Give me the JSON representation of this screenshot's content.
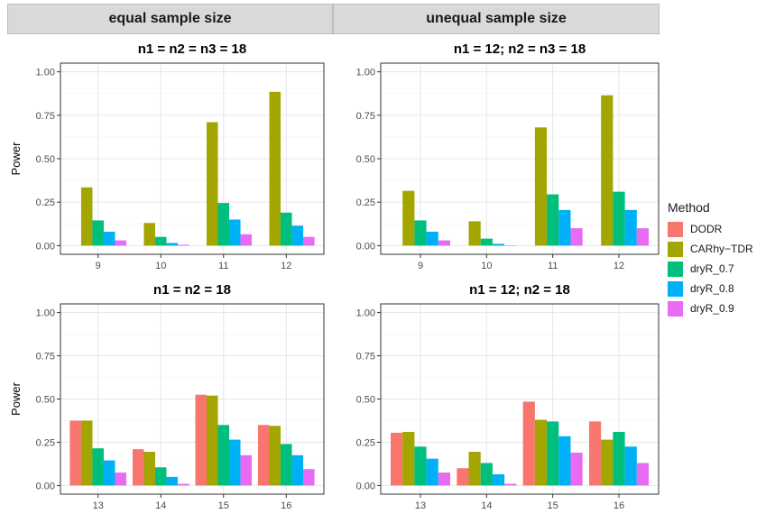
{
  "strips": [
    "equal sample size",
    "unequal sample size"
  ],
  "legend": {
    "title": "Method",
    "items": [
      {
        "label": "DODR",
        "color": "#F8766D"
      },
      {
        "label": "CARhy−TDR",
        "color": "#A3A500"
      },
      {
        "label": "dryR_0.7",
        "color": "#00BF7D"
      },
      {
        "label": "dryR_0.8",
        "color": "#00B0F6"
      },
      {
        "label": "dryR_0.9",
        "color": "#E76BF3"
      }
    ]
  },
  "chart_data": [
    {
      "type": "bar",
      "title": "n1 = n2 = n3 = 18",
      "strip": "equal sample size",
      "ylabel": "Power",
      "ylim": [
        0,
        1
      ],
      "yticks": [
        "0.00",
        "0.25",
        "0.50",
        "0.75",
        "1.00"
      ],
      "categories": [
        "9",
        "10",
        "11",
        "12"
      ],
      "series": [
        {
          "name": "DODR",
          "values": [
            0,
            0,
            0,
            0
          ]
        },
        {
          "name": "CARhy−TDR",
          "values": [
            0.335,
            0.13,
            0.71,
            0.885
          ]
        },
        {
          "name": "dryR_0.7",
          "values": [
            0.145,
            0.05,
            0.245,
            0.19
          ]
        },
        {
          "name": "dryR_0.8",
          "values": [
            0.08,
            0.015,
            0.15,
            0.115
          ]
        },
        {
          "name": "dryR_0.9",
          "values": [
            0.03,
            0.005,
            0.065,
            0.05
          ]
        }
      ]
    },
    {
      "type": "bar",
      "title": "n1 = 12; n2 = n3 = 18",
      "strip": "unequal sample size",
      "ylabel": "",
      "ylim": [
        0,
        1
      ],
      "yticks": [
        "0.00",
        "0.25",
        "0.50",
        "0.75",
        "1.00"
      ],
      "categories": [
        "9",
        "10",
        "11",
        "12"
      ],
      "series": [
        {
          "name": "DODR",
          "values": [
            0,
            0,
            0,
            0
          ]
        },
        {
          "name": "CARhy−TDR",
          "values": [
            0.315,
            0.14,
            0.68,
            0.865
          ]
        },
        {
          "name": "dryR_0.7",
          "values": [
            0.145,
            0.04,
            0.295,
            0.31
          ]
        },
        {
          "name": "dryR_0.8",
          "values": [
            0.08,
            0.01,
            0.205,
            0.205
          ]
        },
        {
          "name": "dryR_0.9",
          "values": [
            0.03,
            0.002,
            0.1,
            0.1
          ]
        }
      ]
    },
    {
      "type": "bar",
      "title": "n1 = n2 = 18",
      "strip": "equal sample size",
      "ylabel": "Power",
      "ylim": [
        0,
        1
      ],
      "yticks": [
        "0.00",
        "0.25",
        "0.50",
        "0.75",
        "1.00"
      ],
      "categories": [
        "13",
        "14",
        "15",
        "16"
      ],
      "series": [
        {
          "name": "DODR",
          "values": [
            0.375,
            0.21,
            0.525,
            0.35
          ]
        },
        {
          "name": "CARhy−TDR",
          "values": [
            0.375,
            0.195,
            0.52,
            0.345
          ]
        },
        {
          "name": "dryR_0.7",
          "values": [
            0.215,
            0.105,
            0.35,
            0.24
          ]
        },
        {
          "name": "dryR_0.8",
          "values": [
            0.145,
            0.05,
            0.265,
            0.175
          ]
        },
        {
          "name": "dryR_0.9",
          "values": [
            0.075,
            0.01,
            0.175,
            0.095
          ]
        }
      ]
    },
    {
      "type": "bar",
      "title": "n1 = 12; n2 = 18",
      "strip": "unequal sample size",
      "ylabel": "",
      "ylim": [
        0,
        1
      ],
      "yticks": [
        "0.00",
        "0.25",
        "0.50",
        "0.75",
        "1.00"
      ],
      "categories": [
        "13",
        "14",
        "15",
        "16"
      ],
      "series": [
        {
          "name": "DODR",
          "values": [
            0.305,
            0.1,
            0.485,
            0.37
          ]
        },
        {
          "name": "CARhy−TDR",
          "values": [
            0.31,
            0.195,
            0.38,
            0.265
          ]
        },
        {
          "name": "dryR_0.7",
          "values": [
            0.225,
            0.13,
            0.37,
            0.31
          ]
        },
        {
          "name": "dryR_0.8",
          "values": [
            0.155,
            0.065,
            0.285,
            0.225
          ]
        },
        {
          "name": "dryR_0.9",
          "values": [
            0.075,
            0.01,
            0.19,
            0.13
          ]
        }
      ]
    }
  ]
}
